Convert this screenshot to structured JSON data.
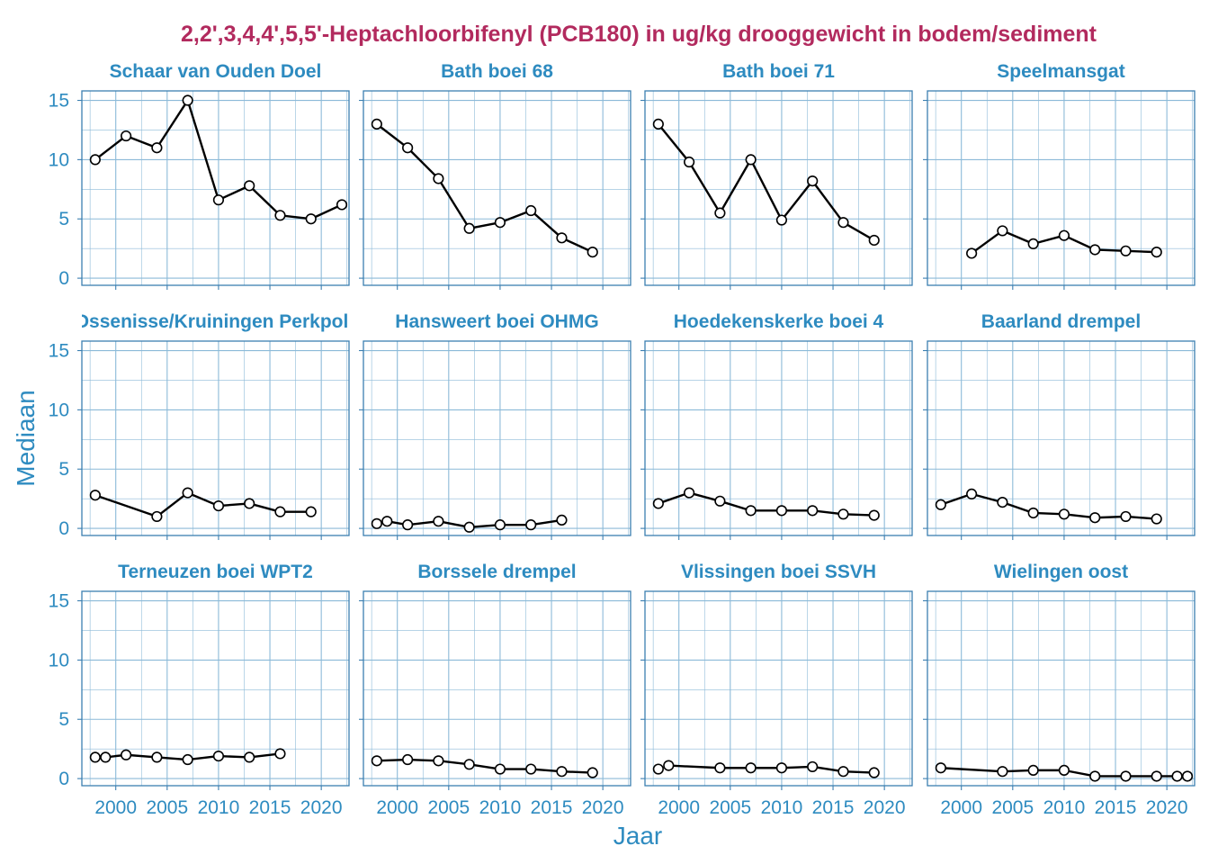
{
  "chart_data": {
    "type": "line",
    "title": "2,2',3,4,4',5,5'-Heptachloorbifenyl (PCB180) in ug/kg drooggewicht in bodem/sediment",
    "xlabel": "Jaar",
    "ylabel": "Mediaan",
    "xlim": [
      1996.7,
      2022.7
    ],
    "ylim": [
      -0.6,
      15.8
    ],
    "x_ticks": [
      2000,
      2005,
      2010,
      2015,
      2020
    ],
    "y_ticks": [
      0,
      5,
      10,
      15
    ],
    "grid": true,
    "colors": {
      "title": "#B22A5E",
      "axis": "#2E8BC0",
      "panel_border": "#3C7FB1",
      "grid": "#8CBAD8",
      "line": "#000000",
      "marker_fill": "#FFFFFF"
    },
    "panels": [
      {
        "name": "Schaar van Ouden Doel",
        "points": [
          [
            1998,
            10
          ],
          [
            2001,
            12
          ],
          [
            2004,
            11
          ],
          [
            2007,
            15
          ],
          [
            2010,
            6.6
          ],
          [
            2013,
            7.8
          ],
          [
            2016,
            5.3
          ],
          [
            2019,
            5.0
          ],
          [
            2022,
            6.2
          ]
        ]
      },
      {
        "name": "Bath boei 68",
        "points": [
          [
            1998,
            13
          ],
          [
            2001,
            11
          ],
          [
            2004,
            8.4
          ],
          [
            2007,
            4.2
          ],
          [
            2010,
            4.7
          ],
          [
            2013,
            5.7
          ],
          [
            2016,
            3.4
          ],
          [
            2019,
            2.2
          ]
        ]
      },
      {
        "name": "Bath boei 71",
        "points": [
          [
            1998,
            13
          ],
          [
            2001,
            9.8
          ],
          [
            2004,
            5.5
          ],
          [
            2007,
            10
          ],
          [
            2010,
            4.9
          ],
          [
            2013,
            8.2
          ],
          [
            2016,
            4.7
          ],
          [
            2019,
            3.2
          ]
        ]
      },
      {
        "name": "Speelmansgat",
        "points": [
          [
            2001,
            2.1
          ],
          [
            2004,
            4.0
          ],
          [
            2007,
            2.9
          ],
          [
            2010,
            3.6
          ],
          [
            2013,
            2.4
          ],
          [
            2016,
            2.3
          ],
          [
            2019,
            2.2
          ]
        ]
      },
      {
        "name": "Walsoorden/Ossenisse/Kruiningen Perkpolder (drempel)",
        "points": [
          [
            1998,
            2.8
          ],
          [
            2004,
            1.0
          ],
          [
            2007,
            3.0
          ],
          [
            2010,
            1.9
          ],
          [
            2013,
            2.1
          ],
          [
            2016,
            1.4
          ],
          [
            2019,
            1.4
          ]
        ]
      },
      {
        "name": "Hansweert boei OHMG",
        "points": [
          [
            1998,
            0.4
          ],
          [
            1999,
            0.6
          ],
          [
            2001,
            0.3
          ],
          [
            2004,
            0.6
          ],
          [
            2007,
            0.1
          ],
          [
            2010,
            0.3
          ],
          [
            2013,
            0.3
          ],
          [
            2016,
            0.7
          ]
        ]
      },
      {
        "name": "Hoedekenskerke boei 4",
        "points": [
          [
            1998,
            2.1
          ],
          [
            2001,
            3.0
          ],
          [
            2004,
            2.3
          ],
          [
            2007,
            1.5
          ],
          [
            2010,
            1.5
          ],
          [
            2013,
            1.5
          ],
          [
            2016,
            1.2
          ],
          [
            2019,
            1.1
          ]
        ]
      },
      {
        "name": "Baarland drempel",
        "points": [
          [
            1998,
            2.0
          ],
          [
            2001,
            2.9
          ],
          [
            2004,
            2.2
          ],
          [
            2007,
            1.3
          ],
          [
            2010,
            1.2
          ],
          [
            2013,
            0.9
          ],
          [
            2016,
            1.0
          ],
          [
            2019,
            0.8
          ]
        ]
      },
      {
        "name": "Terneuzen boei WPT2",
        "points": [
          [
            1998,
            1.8
          ],
          [
            1999,
            1.8
          ],
          [
            2001,
            2.0
          ],
          [
            2004,
            1.8
          ],
          [
            2007,
            1.6
          ],
          [
            2010,
            1.9
          ],
          [
            2013,
            1.8
          ],
          [
            2016,
            2.1
          ]
        ]
      },
      {
        "name": "Borssele drempel",
        "points": [
          [
            1998,
            1.5
          ],
          [
            2001,
            1.6
          ],
          [
            2004,
            1.5
          ],
          [
            2007,
            1.2
          ],
          [
            2010,
            0.8
          ],
          [
            2013,
            0.8
          ],
          [
            2016,
            0.6
          ],
          [
            2019,
            0.5
          ]
        ]
      },
      {
        "name": "Vlissingen boei SSVH",
        "points": [
          [
            1998,
            0.8
          ],
          [
            1999,
            1.1
          ],
          [
            2004,
            0.9
          ],
          [
            2007,
            0.9
          ],
          [
            2010,
            0.9
          ],
          [
            2013,
            1.0
          ],
          [
            2016,
            0.6
          ],
          [
            2019,
            0.5
          ]
        ],
        "connect": [
          false,
          false,
          true,
          true,
          true,
          true,
          true,
          true
        ]
      },
      {
        "name": "Wielingen oost",
        "points": [
          [
            1998,
            0.9
          ],
          [
            2004,
            0.6
          ],
          [
            2007,
            0.7
          ],
          [
            2010,
            0.7
          ],
          [
            2013,
            0.2
          ],
          [
            2016,
            0.2
          ],
          [
            2019,
            0.2
          ],
          [
            2021,
            0.2
          ],
          [
            2022,
            0.2
          ]
        ]
      }
    ]
  }
}
